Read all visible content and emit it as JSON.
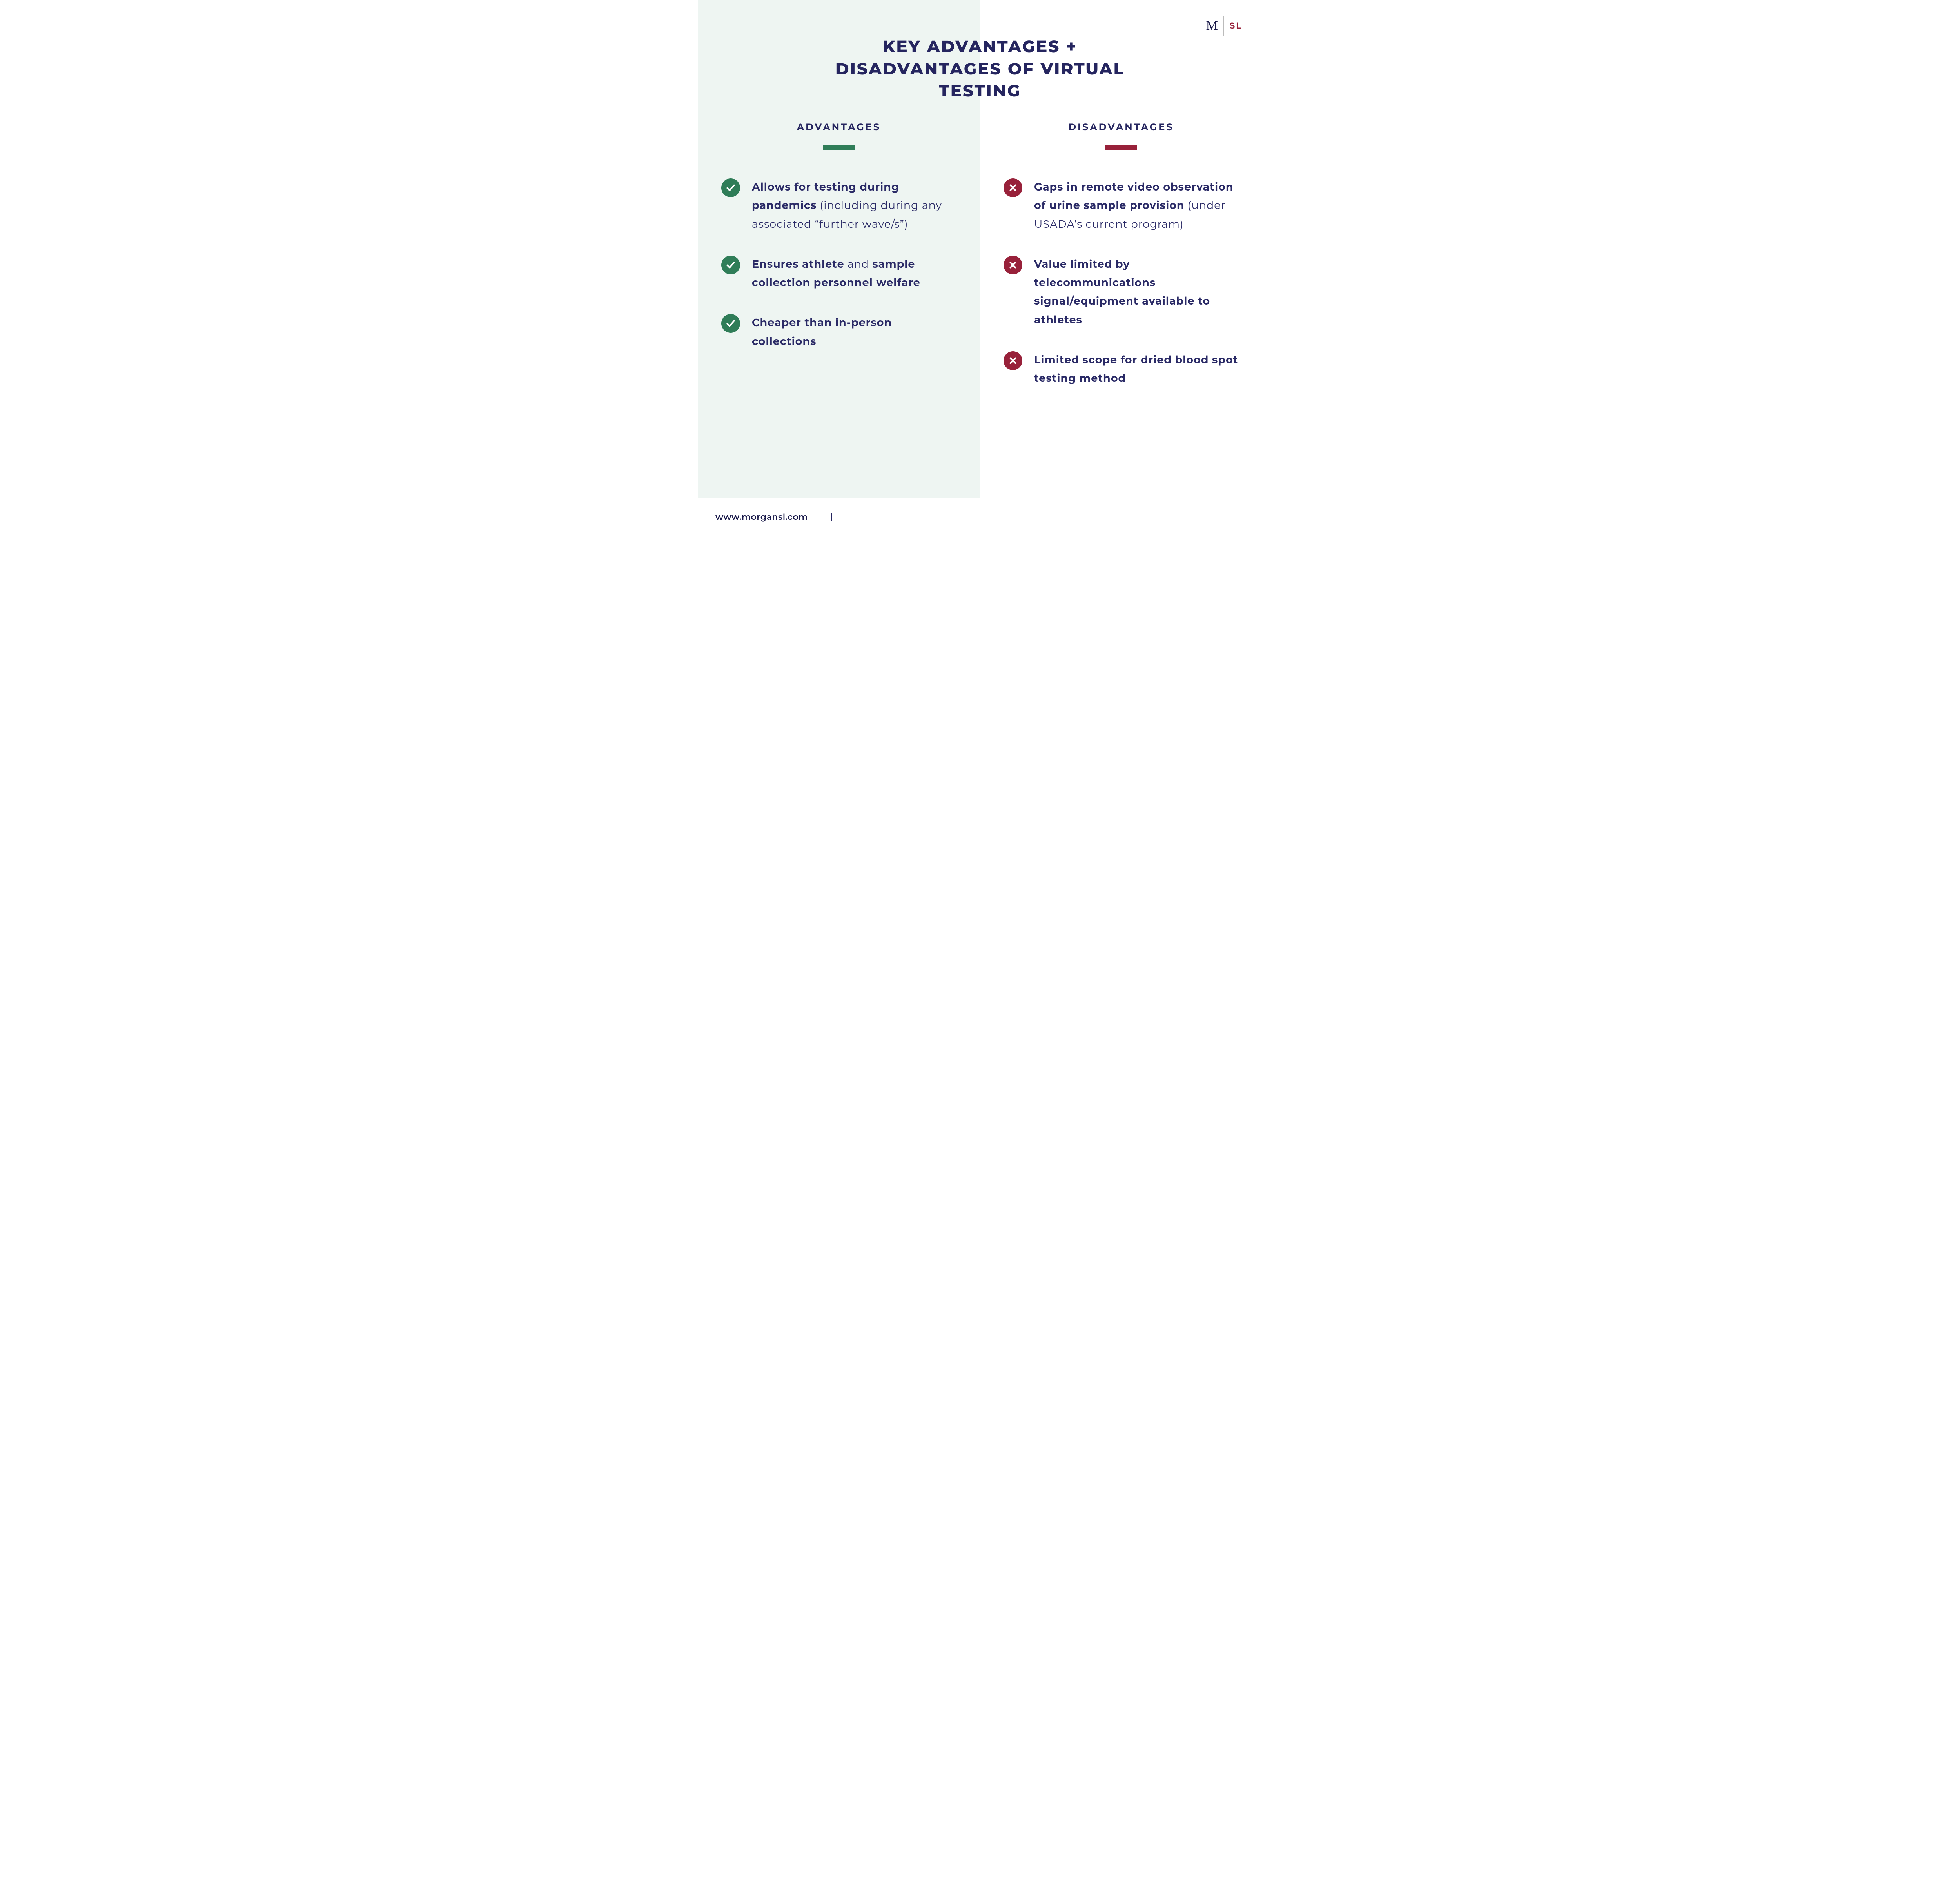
{
  "title": "KEY ADVANTAGES + DISADVANTAGES OF VIRTUAL TESTING",
  "logo": {
    "left": "M",
    "right": "SL"
  },
  "colors": {
    "primary_text": "#25255f",
    "advantage_green": "#2f7d58",
    "disadvantage_red": "#98213a",
    "left_bg": "#eef5f2",
    "right_bg": "#ffffff"
  },
  "advantages": {
    "heading": "ADVANTAGES",
    "bar_color": "#2f7d58",
    "icon_bg": "#2f7d58",
    "items": [
      {
        "html": "<span class=\"bold\">Allows for testing during pandemics</span> (including during any associated “further wave/s”)"
      },
      {
        "html": "<span class=\"bold\">Ensures athlete</span> and <span class=\"bold\">sample collection personnel welfare</span>"
      },
      {
        "html": "<span class=\"bold\">Cheaper than in-person collections</span>"
      }
    ]
  },
  "disadvantages": {
    "heading": "DISADVANTAGES",
    "bar_color": "#98213a",
    "icon_bg": "#98213a",
    "items": [
      {
        "html": "<span class=\"bold\">Gaps in remote video observation of urine sample provision</span> (under USADA’s current program)"
      },
      {
        "html": "<span class=\"bold\">Value limited by telecommunications signal/equipment available to athletes</span>"
      },
      {
        "html": "<span class=\"bold\">Limited scope for dried blood spot testing method</span>"
      }
    ]
  },
  "footer": {
    "url": "www.morgansl.com"
  }
}
